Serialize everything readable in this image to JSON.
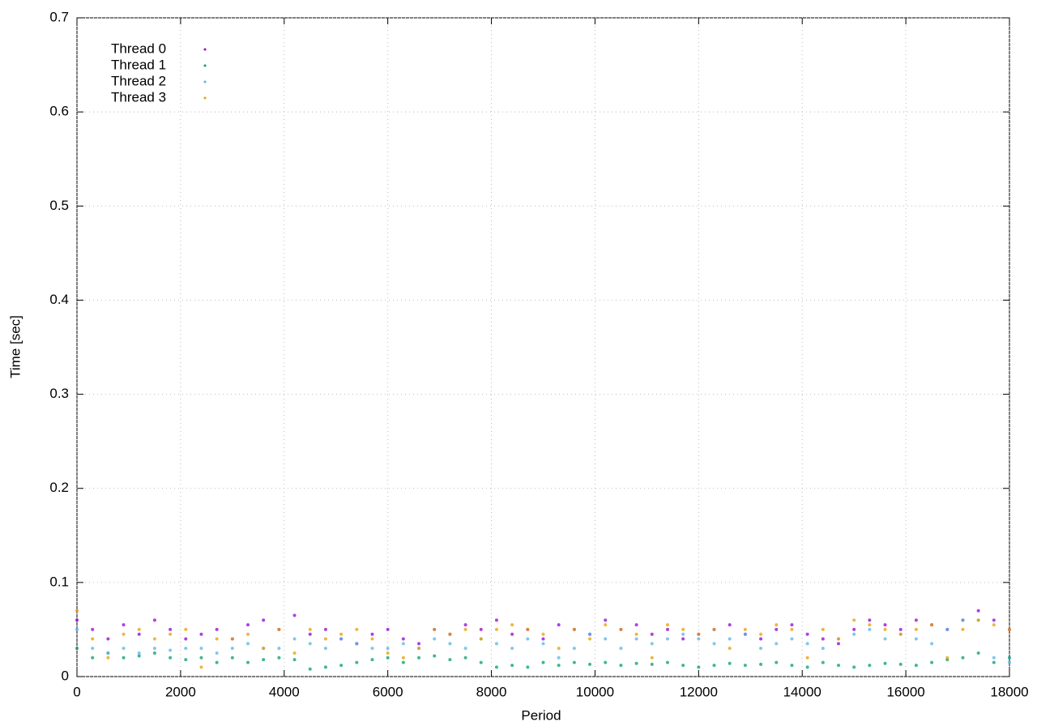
{
  "chart_data": {
    "type": "scatter",
    "xlabel": "Period",
    "ylabel": "Time [sec]",
    "xlim": [
      0,
      18000
    ],
    "xticks": [
      0,
      2000,
      4000,
      6000,
      8000,
      10000,
      12000,
      14000,
      16000,
      18000
    ],
    "ylim": [
      0,
      0.7
    ],
    "yticks": [
      0,
      0.1,
      0.2,
      0.3,
      0.4,
      0.5,
      0.6,
      0.7
    ],
    "grid": true,
    "legend": "top-left",
    "x": [
      0,
      300,
      600,
      900,
      1200,
      1500,
      1800,
      2100,
      2400,
      2700,
      3000,
      3300,
      3600,
      3900,
      4200,
      4500,
      4800,
      5100,
      5400,
      5700,
      6000,
      6300,
      6600,
      6900,
      7200,
      7500,
      7800,
      8100,
      8400,
      8700,
      9000,
      9300,
      9600,
      9900,
      10200,
      10500,
      10800,
      11100,
      11400,
      11700,
      12000,
      12300,
      12600,
      12900,
      13200,
      13500,
      13800,
      14100,
      14400,
      14700,
      15000,
      15300,
      15600,
      15900,
      16200,
      16500,
      16800,
      17100,
      17400,
      17700,
      18000
    ],
    "series": [
      {
        "name": "Thread 0",
        "color": "#9400d3",
        "values": [
          0.06,
          0.05,
          0.04,
          0.055,
          0.045,
          0.06,
          0.05,
          0.04,
          0.045,
          0.05,
          0.04,
          0.055,
          0.06,
          0.05,
          0.065,
          0.045,
          0.05,
          0.04,
          0.035,
          0.045,
          0.05,
          0.04,
          0.035,
          0.05,
          0.045,
          0.055,
          0.05,
          0.06,
          0.045,
          0.05,
          0.04,
          0.055,
          0.05,
          0.045,
          0.06,
          0.05,
          0.055,
          0.045,
          0.05,
          0.04,
          0.045,
          0.05,
          0.055,
          0.045,
          0.04,
          0.05,
          0.055,
          0.045,
          0.04,
          0.035,
          0.05,
          0.06,
          0.055,
          0.05,
          0.06,
          0.055,
          0.05,
          0.06,
          0.07,
          0.06,
          0.05
        ]
      },
      {
        "name": "Thread 1",
        "color": "#009e73",
        "values": [
          0.03,
          0.02,
          0.025,
          0.02,
          0.022,
          0.025,
          0.02,
          0.018,
          0.02,
          0.015,
          0.02,
          0.015,
          0.018,
          0.02,
          0.018,
          0.008,
          0.01,
          0.012,
          0.015,
          0.018,
          0.02,
          0.015,
          0.02,
          0.022,
          0.018,
          0.02,
          0.015,
          0.01,
          0.012,
          0.01,
          0.015,
          0.012,
          0.015,
          0.013,
          0.015,
          0.012,
          0.014,
          0.013,
          0.015,
          0.012,
          0.01,
          0.012,
          0.014,
          0.012,
          0.013,
          0.015,
          0.012,
          0.01,
          0.015,
          0.012,
          0.01,
          0.012,
          0.014,
          0.013,
          0.012,
          0.015,
          0.018,
          0.02,
          0.025,
          0.015,
          0.02
        ]
      },
      {
        "name": "Thread 2",
        "color": "#56b4e9",
        "values": [
          0.05,
          0.03,
          0.025,
          0.03,
          0.025,
          0.03,
          0.028,
          0.03,
          0.03,
          0.025,
          0.03,
          0.035,
          0.03,
          0.03,
          0.04,
          0.035,
          0.03,
          0.04,
          0.035,
          0.03,
          0.03,
          0.035,
          0.03,
          0.04,
          0.035,
          0.03,
          0.04,
          0.035,
          0.03,
          0.04,
          0.035,
          0.02,
          0.03,
          0.045,
          0.04,
          0.03,
          0.04,
          0.035,
          0.04,
          0.045,
          0.04,
          0.035,
          0.04,
          0.045,
          0.03,
          0.035,
          0.04,
          0.035,
          0.03,
          0.04,
          0.045,
          0.05,
          0.04,
          0.045,
          0.04,
          0.035,
          0.05,
          0.06,
          0.06,
          0.02,
          0.015
        ]
      },
      {
        "name": "Thread 3",
        "color": "#e69f00",
        "values": [
          0.07,
          0.04,
          0.02,
          0.045,
          0.05,
          0.04,
          0.045,
          0.05,
          0.01,
          0.04,
          0.04,
          0.045,
          0.03,
          0.05,
          0.025,
          0.05,
          0.04,
          0.045,
          0.05,
          0.04,
          0.025,
          0.02,
          0.03,
          0.05,
          0.045,
          0.05,
          0.04,
          0.05,
          0.055,
          0.05,
          0.045,
          0.03,
          0.05,
          0.04,
          0.055,
          0.05,
          0.045,
          0.02,
          0.055,
          0.05,
          0.045,
          0.05,
          0.03,
          0.05,
          0.045,
          0.055,
          0.05,
          0.02,
          0.05,
          0.04,
          0.06,
          0.055,
          0.05,
          0.045,
          0.05,
          0.055,
          0.02,
          0.05,
          0.06,
          0.055,
          0.05
        ]
      }
    ]
  }
}
